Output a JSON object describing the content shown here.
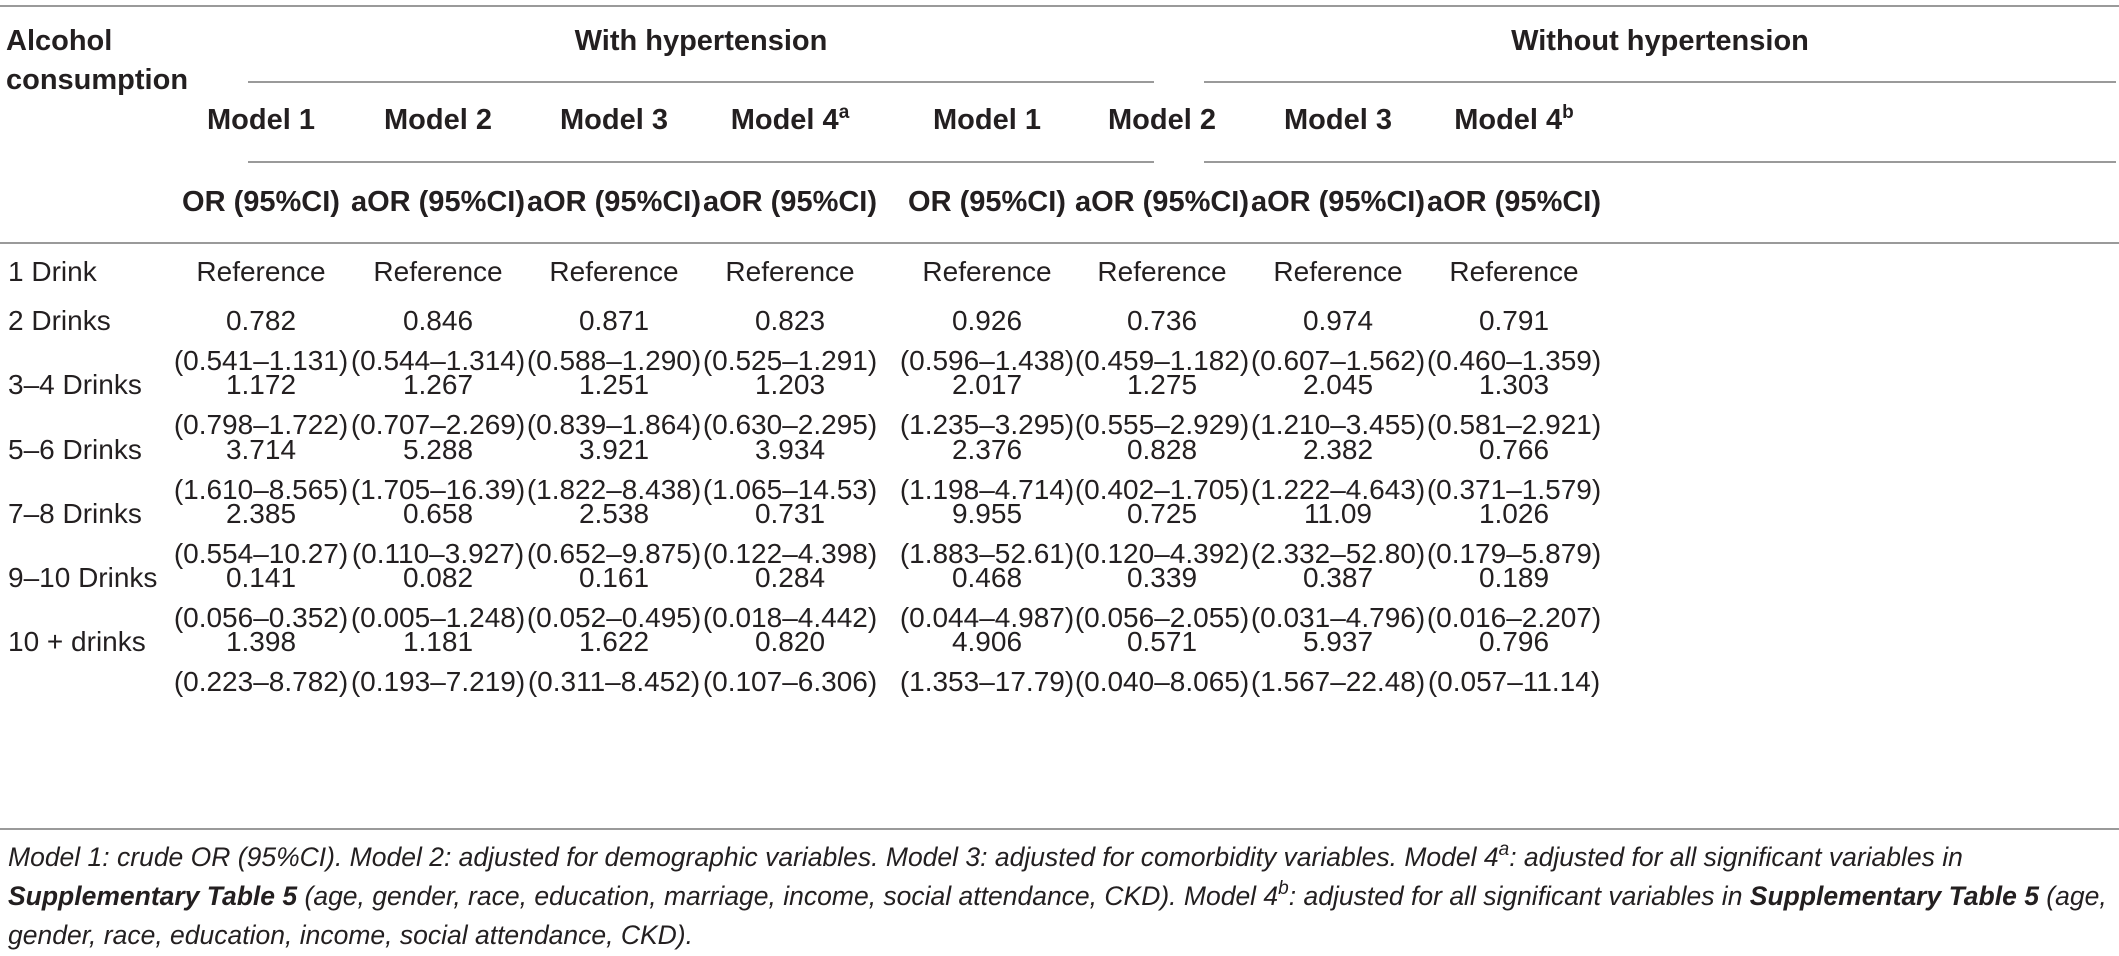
{
  "table": {
    "corner_label": [
      "Alcohol",
      "consumption"
    ],
    "groups": [
      "With hypertension",
      "Without hypertension"
    ],
    "models": [
      {
        "name": "Model 1",
        "sup": "",
        "stat": "OR (95%CI)"
      },
      {
        "name": "Model 2",
        "sup": "",
        "stat": "aOR (95%CI)"
      },
      {
        "name": "Model 3",
        "sup": "",
        "stat": "aOR (95%CI)"
      },
      {
        "name": "Model 4",
        "sup": "a",
        "stat": "aOR (95%CI)"
      },
      {
        "name": "Model 1",
        "sup": "",
        "stat": "OR (95%CI)"
      },
      {
        "name": "Model 2",
        "sup": "",
        "stat": "aOR (95%CI)"
      },
      {
        "name": "Model 3",
        "sup": "",
        "stat": "aOR (95%CI)"
      },
      {
        "name": "Model 4",
        "sup": "b",
        "stat": "aOR (95%CI)"
      }
    ],
    "rows": [
      {
        "label": "1 Drink",
        "reference": "Reference"
      },
      {
        "label": "2 Drinks",
        "values": [
          [
            "0.782",
            "(0.541–1.131)"
          ],
          [
            "0.846",
            "(0.544–1.314)"
          ],
          [
            "0.871",
            "(0.588–1.290)"
          ],
          [
            "0.823",
            "(0.525–1.291)"
          ],
          [
            "0.926",
            "(0.596–1.438)"
          ],
          [
            "0.736",
            "(0.459–1.182)"
          ],
          [
            "0.974",
            "(0.607–1.562)"
          ],
          [
            "0.791",
            "(0.460–1.359)"
          ]
        ]
      },
      {
        "label": "3–4 Drinks",
        "values": [
          [
            "1.172",
            "(0.798–1.722)"
          ],
          [
            "1.267",
            "(0.707–2.269)"
          ],
          [
            "1.251",
            "(0.839–1.864)"
          ],
          [
            "1.203",
            "(0.630–2.295)"
          ],
          [
            "2.017",
            "(1.235–3.295)"
          ],
          [
            "1.275",
            "(0.555–2.929)"
          ],
          [
            "2.045",
            "(1.210–3.455)"
          ],
          [
            "1.303",
            "(0.581–2.921)"
          ]
        ]
      },
      {
        "label": "5–6 Drinks",
        "values": [
          [
            "3.714",
            "(1.610–8.565)"
          ],
          [
            "5.288",
            "(1.705–16.39)"
          ],
          [
            "3.921",
            "(1.822–8.438)"
          ],
          [
            "3.934",
            "(1.065–14.53)"
          ],
          [
            "2.376",
            "(1.198–4.714)"
          ],
          [
            "0.828",
            "(0.402–1.705)"
          ],
          [
            "2.382",
            "(1.222–4.643)"
          ],
          [
            "0.766",
            "(0.371–1.579)"
          ]
        ]
      },
      {
        "label": "7–8 Drinks",
        "values": [
          [
            "2.385",
            "(0.554–10.27)"
          ],
          [
            "0.658",
            "(0.110–3.927)"
          ],
          [
            "2.538",
            "(0.652–9.875)"
          ],
          [
            "0.731",
            "(0.122–4.398)"
          ],
          [
            "9.955",
            "(1.883–52.61)"
          ],
          [
            "0.725",
            "(0.120–4.392)"
          ],
          [
            "11.09",
            "(2.332–52.80)"
          ],
          [
            "1.026",
            "(0.179–5.879)"
          ]
        ]
      },
      {
        "label": "9–10 Drinks",
        "values": [
          [
            "0.141",
            "(0.056–0.352)"
          ],
          [
            "0.082",
            "(0.005–1.248)"
          ],
          [
            "0.161",
            "(0.052–0.495)"
          ],
          [
            "0.284",
            "(0.018–4.442)"
          ],
          [
            "0.468",
            "(0.044–4.987)"
          ],
          [
            "0.339",
            "(0.056–2.055)"
          ],
          [
            "0.387",
            "(0.031–4.796)"
          ],
          [
            "0.189",
            "(0.016–2.207)"
          ]
        ]
      },
      {
        "label": "10 + drinks",
        "values": [
          [
            "1.398",
            "(0.223–8.782)"
          ],
          [
            "1.181",
            "(0.193–7.219)"
          ],
          [
            "1.622",
            "(0.311–8.452)"
          ],
          [
            "0.820",
            "(0.107–6.306)"
          ],
          [
            "4.906",
            "(1.353–17.79)"
          ],
          [
            "0.571",
            "(0.040–8.065)"
          ],
          [
            "5.937",
            "(1.567–22.48)"
          ],
          [
            "0.796",
            "(0.057–11.14)"
          ]
        ]
      }
    ]
  },
  "footnote": {
    "part1": "Model 1: crude OR (95%CI). Model 2: adjusted for demographic variables. Model 3: adjusted for comorbidity variables. Model 4",
    "sup_a": "a",
    "part2": ": adjusted for all significant variables in ",
    "supp_table": "Supplementary Table 5",
    "part3": " (age, gender, race, education, marriage, income, social attendance, CKD). Model 4",
    "sup_b": "b",
    "part4": ": adjusted for all significant variables in ",
    "part5": " (age, gender, race, education, income, social attendance, CKD)."
  }
}
